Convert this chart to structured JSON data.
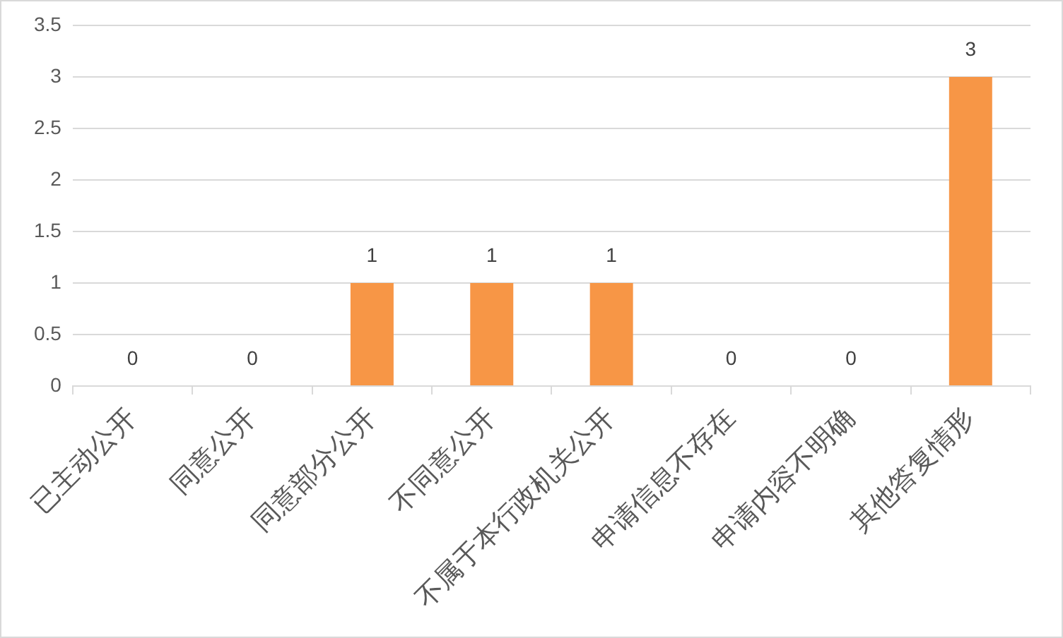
{
  "chart_data": {
    "type": "bar",
    "categories": [
      "已主动公开",
      "同意公开",
      "同意部分公开",
      "不同意公开",
      "不属于本行政机关公开",
      "申请信息不存在",
      "申请内容不明确",
      "其他答复情形"
    ],
    "values": [
      0,
      0,
      1,
      1,
      1,
      0,
      0,
      3
    ],
    "color": "#f79646",
    "ylim": [
      0,
      3.5
    ],
    "yticks": [
      0,
      0.5,
      1,
      1.5,
      2,
      2.5,
      3,
      3.5
    ],
    "grid": "y",
    "data_labels": true
  }
}
